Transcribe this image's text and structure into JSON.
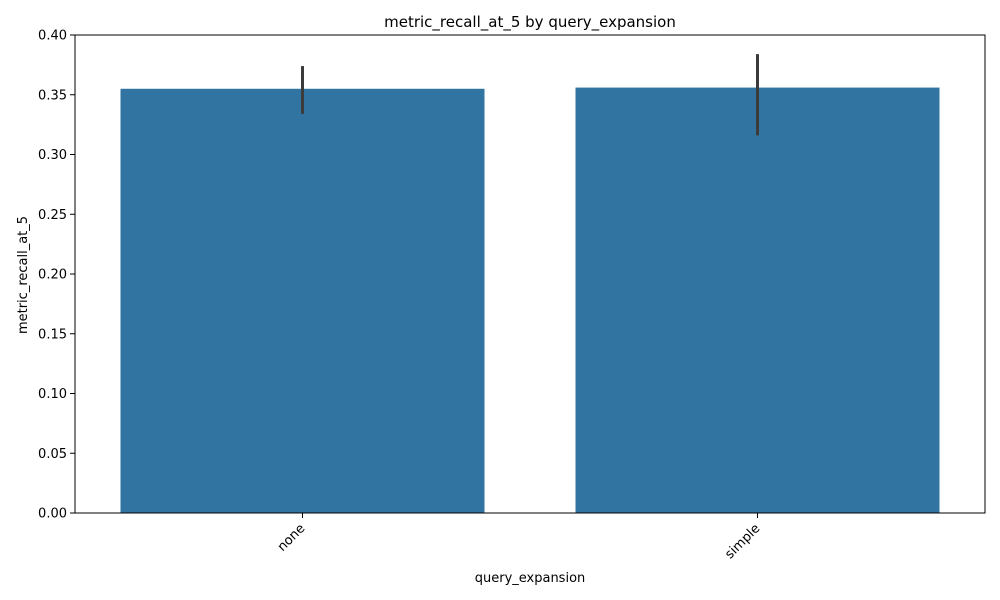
{
  "chart_data": {
    "type": "bar",
    "title": "metric_recall_at_5 by query_expansion",
    "xlabel": "query_expansion",
    "ylabel": "metric_recall_at_5",
    "categories": [
      "none",
      "simple"
    ],
    "values": [
      0.355,
      0.356
    ],
    "error_bars": [
      {
        "low": 0.334,
        "high": 0.374
      },
      {
        "low": 0.316,
        "high": 0.384
      }
    ],
    "ylim": [
      0,
      0.4
    ],
    "yticks": [
      "0.00",
      "0.05",
      "0.10",
      "0.15",
      "0.20",
      "0.25",
      "0.30",
      "0.35",
      "0.40"
    ],
    "bar_color": "#3274a1",
    "error_color": "#3b3b3b",
    "grid": false,
    "x_tick_rotation_deg": 45
  }
}
